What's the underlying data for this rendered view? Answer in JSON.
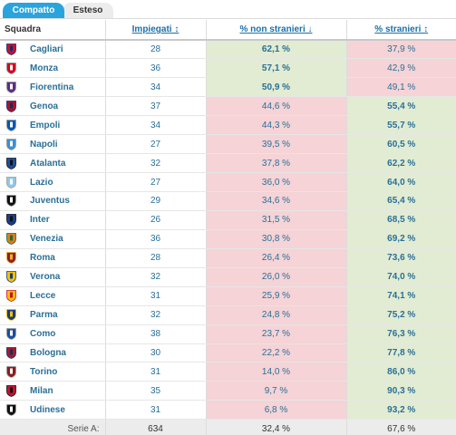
{
  "tabs": [
    {
      "label": "Compatto",
      "active": true
    },
    {
      "label": "Esteso",
      "active": false
    }
  ],
  "columns": {
    "team": "Squadra",
    "employed": "Impiegati ↕",
    "non_foreign": "% non stranieri ↓",
    "foreign": "% stranieri ↕"
  },
  "colors": {
    "good": "#e2ecd3",
    "bad": "#f5d3d6",
    "accent": "#2aa4dc"
  },
  "rows": [
    {
      "team": "Cagliari",
      "crest": "cagliari-crest-icon",
      "crest_colors": [
        "#c8102e",
        "#1a2a6c"
      ],
      "employed": "28",
      "non_foreign": "62,1 %",
      "foreign": "37,9 %",
      "non_foreign_good": true
    },
    {
      "team": "Monza",
      "crest": "monza-crest-icon",
      "crest_colors": [
        "#d6001c",
        "#ffffff"
      ],
      "employed": "36",
      "non_foreign": "57,1 %",
      "foreign": "42,9 %",
      "non_foreign_good": true
    },
    {
      "team": "Fiorentina",
      "crest": "fiorentina-crest-icon",
      "crest_colors": [
        "#5a2d82",
        "#ffffff"
      ],
      "employed": "34",
      "non_foreign": "50,9 %",
      "foreign": "49,1 %",
      "non_foreign_good": true
    },
    {
      "team": "Genoa",
      "crest": "genoa-crest-icon",
      "crest_colors": [
        "#b0102a",
        "#1a2a5c"
      ],
      "employed": "37",
      "non_foreign": "44,6 %",
      "foreign": "55,4 %",
      "non_foreign_good": false
    },
    {
      "team": "Empoli",
      "crest": "empoli-crest-icon",
      "crest_colors": [
        "#0057b8",
        "#ffffff"
      ],
      "employed": "34",
      "non_foreign": "44,3 %",
      "foreign": "55,7 %",
      "non_foreign_good": false
    },
    {
      "team": "Napoli",
      "crest": "napoli-crest-icon",
      "crest_colors": [
        "#3a8fd6",
        "#ffffff"
      ],
      "employed": "27",
      "non_foreign": "39,5 %",
      "foreign": "60,5 %",
      "non_foreign_good": false
    },
    {
      "team": "Atalanta",
      "crest": "atalanta-crest-icon",
      "crest_colors": [
        "#1e4fa0",
        "#111111"
      ],
      "employed": "32",
      "non_foreign": "37,8 %",
      "foreign": "62,2 %",
      "non_foreign_good": false
    },
    {
      "team": "Lazio",
      "crest": "lazio-crest-icon",
      "crest_colors": [
        "#8fc8ea",
        "#ffffff"
      ],
      "employed": "27",
      "non_foreign": "36,0 %",
      "foreign": "64,0 %",
      "non_foreign_good": false
    },
    {
      "team": "Juventus",
      "crest": "juventus-crest-icon",
      "crest_colors": [
        "#111111",
        "#ffffff"
      ],
      "employed": "29",
      "non_foreign": "34,6 %",
      "foreign": "65,4 %",
      "non_foreign_good": false
    },
    {
      "team": "Inter",
      "crest": "inter-crest-icon",
      "crest_colors": [
        "#1a3f8f",
        "#111111"
      ],
      "employed": "26",
      "non_foreign": "31,5 %",
      "foreign": "68,5 %",
      "non_foreign_good": false
    },
    {
      "team": "Venezia",
      "crest": "venezia-crest-icon",
      "crest_colors": [
        "#e07b1a",
        "#1f6b3a"
      ],
      "employed": "36",
      "non_foreign": "30,8 %",
      "foreign": "69,2 %",
      "non_foreign_good": false
    },
    {
      "team": "Roma",
      "crest": "roma-crest-icon",
      "crest_colors": [
        "#8e1f2f",
        "#f0b323"
      ],
      "employed": "28",
      "non_foreign": "26,4 %",
      "foreign": "73,6 %",
      "non_foreign_good": false
    },
    {
      "team": "Verona",
      "crest": "verona-crest-icon",
      "crest_colors": [
        "#f2c200",
        "#1b3b7a"
      ],
      "employed": "32",
      "non_foreign": "26,0 %",
      "foreign": "74,0 %",
      "non_foreign_good": false
    },
    {
      "team": "Lecce",
      "crest": "lecce-crest-icon",
      "crest_colors": [
        "#f2c200",
        "#c8102e"
      ],
      "employed": "31",
      "non_foreign": "25,9 %",
      "foreign": "74,1 %",
      "non_foreign_good": false
    },
    {
      "team": "Parma",
      "crest": "parma-crest-icon",
      "crest_colors": [
        "#1b3b7a",
        "#f2c200"
      ],
      "employed": "32",
      "non_foreign": "24,8 %",
      "foreign": "75,2 %",
      "non_foreign_good": false
    },
    {
      "team": "Como",
      "crest": "como-crest-icon",
      "crest_colors": [
        "#1a4f9c",
        "#ffffff"
      ],
      "employed": "38",
      "non_foreign": "23,7 %",
      "foreign": "76,3 %",
      "non_foreign_good": false
    },
    {
      "team": "Bologna",
      "crest": "bologna-crest-icon",
      "crest_colors": [
        "#a6192e",
        "#1a2a5c"
      ],
      "employed": "30",
      "non_foreign": "22,2 %",
      "foreign": "77,8 %",
      "non_foreign_good": false
    },
    {
      "team": "Torino",
      "crest": "torino-crest-icon",
      "crest_colors": [
        "#8a1c1c",
        "#ffffff"
      ],
      "employed": "31",
      "non_foreign": "14,0 %",
      "foreign": "86,0 %",
      "non_foreign_good": false
    },
    {
      "team": "Milan",
      "crest": "milan-crest-icon",
      "crest_colors": [
        "#c8102e",
        "#111111"
      ],
      "employed": "35",
      "non_foreign": "9,7 %",
      "foreign": "90,3 %",
      "non_foreign_good": false
    },
    {
      "team": "Udinese",
      "crest": "udinese-crest-icon",
      "crest_colors": [
        "#111111",
        "#ffffff"
      ],
      "employed": "31",
      "non_foreign": "6,8 %",
      "foreign": "93,2 %",
      "non_foreign_good": false
    }
  ],
  "footer": {
    "label": "Serie A:",
    "employed": "634",
    "non_foreign": "32,4 %",
    "foreign": "67,6 %"
  }
}
